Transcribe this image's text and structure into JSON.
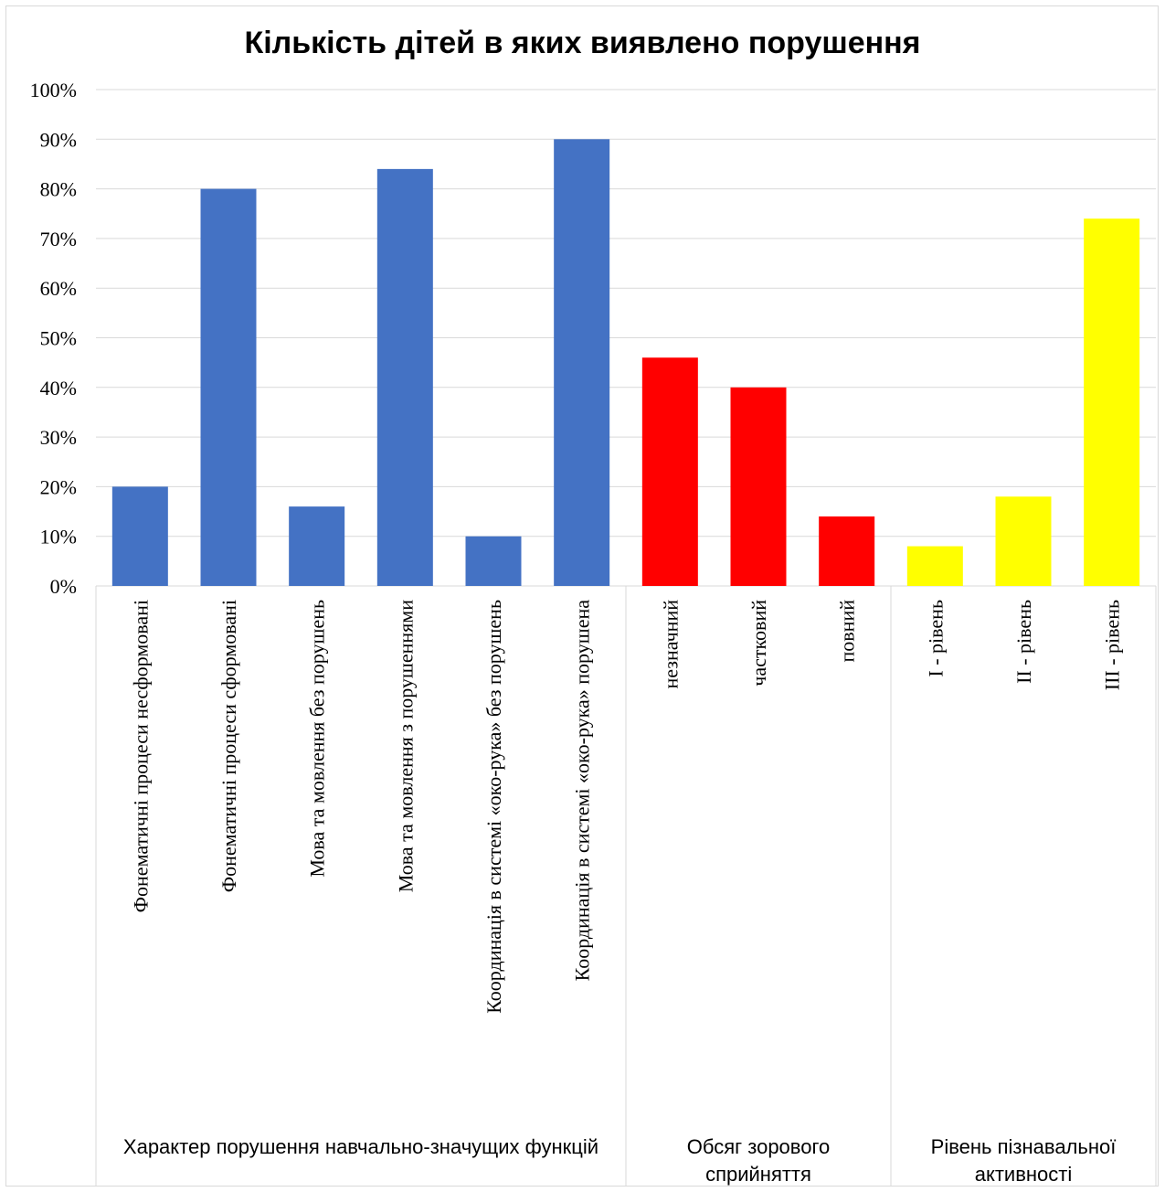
{
  "chart_data": {
    "type": "bar",
    "title": "Кількість дітей в яких виявлено порушення",
    "xlabel": "",
    "ylabel": "",
    "ylim": [
      0,
      100
    ],
    "y_ticks": [
      "0%",
      "10%",
      "20%",
      "30%",
      "40%",
      "50%",
      "60%",
      "70%",
      "80%",
      "90%",
      "100%"
    ],
    "y_unit": "%",
    "grid": true,
    "legend": "none",
    "categories": [
      "Фонематичні процеси несформовані",
      "Фонематичні процеси сформовані",
      "Мова та мовлення без порушень",
      "Мова та мовлення з порушеннями",
      "Координація в системі «око-рука» без порушень",
      "Координація в системі «око-рука» порушена",
      "незначний",
      "частковий",
      "повний",
      "I - рівень",
      "II - рівень",
      "III - рівень"
    ],
    "values": [
      20,
      80,
      16,
      84,
      10,
      90,
      46,
      40,
      14,
      8,
      18,
      74
    ],
    "groups": [
      {
        "name": "Характер порушення навчально-значущих функцій",
        "start": 0,
        "count": 6,
        "color": "#4472C4"
      },
      {
        "name": "Обсяг зорового сприйняття",
        "start": 6,
        "count": 3,
        "color": "#FF0000"
      },
      {
        "name": "Рівень пізнавальної активності",
        "start": 9,
        "count": 3,
        "color": "#FFFF00"
      }
    ]
  }
}
